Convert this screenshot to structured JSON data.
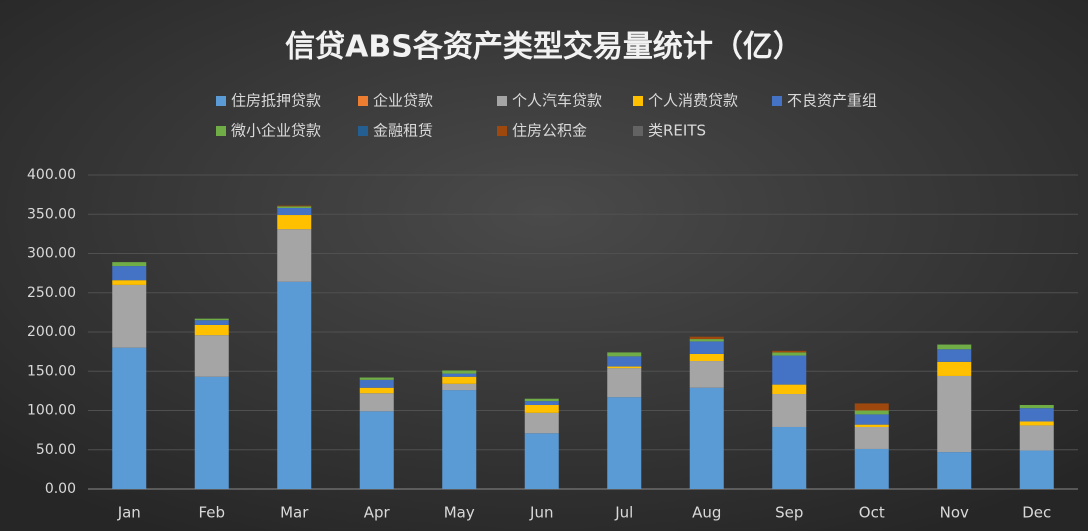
{
  "chart_data": {
    "type": "stacked_bar",
    "title": "信贷ABS各资产类型交易量统计（亿）",
    "categories": [
      "Jan",
      "Feb",
      "Mar",
      "Apr",
      "May",
      "Jun",
      "Jul",
      "Aug",
      "Sep",
      "Oct",
      "Nov",
      "Dec"
    ],
    "series": [
      {
        "name": "住房抵押贷款",
        "color": "#5b9bd5",
        "values": [
          180,
          143,
          264,
          99,
          126,
          71,
          117,
          129,
          79,
          51,
          47,
          49
        ]
      },
      {
        "name": "企业贷款",
        "color": "#ed7d31",
        "values": [
          0,
          0,
          0,
          0,
          0,
          0,
          0,
          0,
          0,
          0,
          0,
          0
        ]
      },
      {
        "name": "个人汽车贷款",
        "color": "#a5a5a5",
        "values": [
          80,
          53,
          67,
          23,
          8,
          26,
          37,
          34,
          42,
          28,
          97,
          32
        ]
      },
      {
        "name": "个人消费贷款",
        "color": "#ffc000",
        "values": [
          6,
          13,
          18,
          7,
          9,
          10,
          2,
          9,
          12,
          3,
          18,
          5
        ]
      },
      {
        "name": "不良资产重组",
        "color": "#4472c4",
        "values": [
          18,
          6,
          9,
          10,
          4,
          5,
          13,
          16,
          37,
          13,
          16,
          17
        ]
      },
      {
        "name": "微小企业贷款",
        "color": "#70ad47",
        "values": [
          5,
          2,
          2,
          3,
          4,
          3,
          5,
          3,
          4,
          5,
          6,
          4
        ]
      },
      {
        "name": "金融租赁",
        "color": "#255e91",
        "values": [
          0,
          0,
          0,
          0,
          0,
          0,
          0,
          0,
          0,
          0,
          0,
          0
        ]
      },
      {
        "name": "住房公积金",
        "color": "#9e480e",
        "values": [
          0,
          0,
          1,
          0,
          0,
          0,
          0,
          3,
          2,
          9,
          0,
          0
        ]
      },
      {
        "name": "类REITS",
        "color": "#636363",
        "values": [
          0,
          0,
          0,
          0,
          0,
          0,
          0,
          0,
          0,
          0,
          0,
          0
        ]
      }
    ],
    "ylim": [
      0,
      400
    ],
    "yticks": [
      {
        "value": 0,
        "label": "0.00"
      },
      {
        "value": 50,
        "label": "50.00"
      },
      {
        "value": 100,
        "label": "100.00"
      },
      {
        "value": 150,
        "label": "150.00"
      },
      {
        "value": 200,
        "label": "200.00"
      },
      {
        "value": 250,
        "label": "250.00"
      },
      {
        "value": 300,
        "label": "300.00"
      },
      {
        "value": 350,
        "label": "350.00"
      },
      {
        "value": 400,
        "label": "400.00"
      }
    ],
    "grid": true
  }
}
